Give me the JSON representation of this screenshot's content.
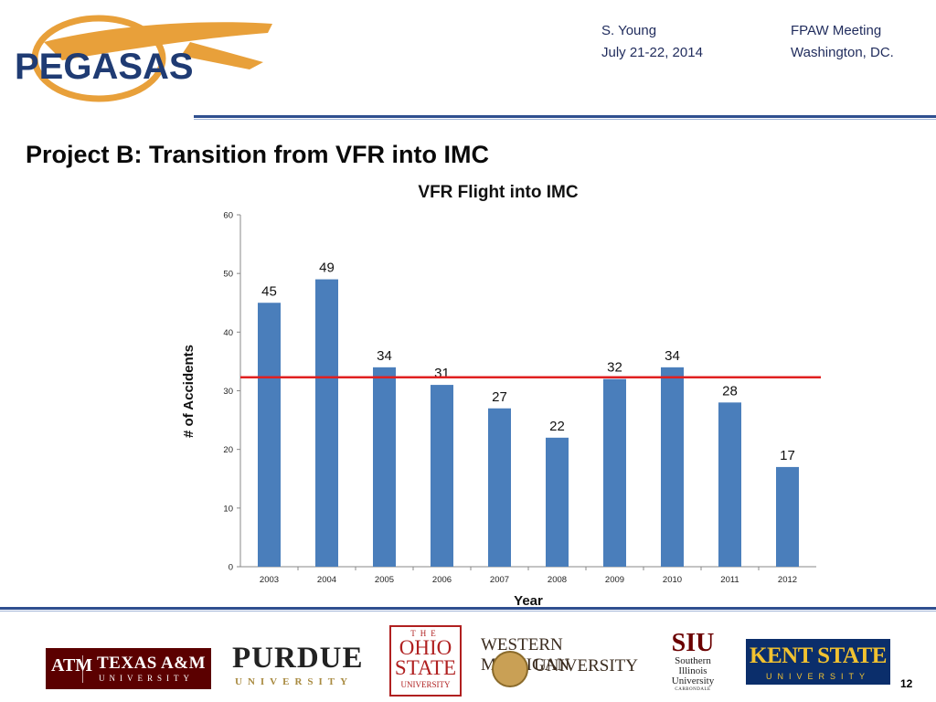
{
  "logo": {
    "text": "PEGASAS"
  },
  "header": {
    "author": "S. Young",
    "date": "July 21-22, 2014",
    "event": "FPAW Meeting",
    "location": "Washington, DC."
  },
  "slide": {
    "title": "Project B:  Transition from VFR into IMC",
    "page_number": "12"
  },
  "chart_data": {
    "type": "bar",
    "title": "VFR Flight into IMC",
    "xlabel": "Year",
    "ylabel": "# of Accidents",
    "categories": [
      "2003",
      "2004",
      "2005",
      "2006",
      "2007",
      "2008",
      "2009",
      "2010",
      "2011",
      "2012"
    ],
    "values": [
      45,
      49,
      34,
      31,
      27,
      22,
      32,
      34,
      28,
      17
    ],
    "data_labels": [
      "45",
      "49",
      "34",
      "31",
      "27",
      "22",
      "32",
      "34",
      "28",
      "17"
    ],
    "ylim": [
      0,
      60
    ],
    "yticks": [
      0,
      10,
      20,
      30,
      40,
      50,
      60
    ],
    "ytick_labels": [
      "0",
      "10",
      "20",
      "30",
      "40",
      "50",
      "60"
    ],
    "reference_line": 32.3,
    "grid": false,
    "bar_color": "#4a7ebb",
    "reference_line_color": "#e02020"
  },
  "universities": {
    "tamu": {
      "name": "TEXAS A&M",
      "sub": "UNIVERSITY",
      "mark": "ATM"
    },
    "purdue": {
      "name": "PURDUE",
      "sub": "UNIVERSITY"
    },
    "osu": {
      "the": "THE",
      "line1": "OHIO",
      "line2": "STATE",
      "line3": "UNIVERSITY"
    },
    "wmu": {
      "line1": "WESTERN MICHIGAN",
      "line2": "UNIVERSITY"
    },
    "siu": {
      "name": "SIU",
      "line1": "Southern",
      "line2": "Illinois",
      "line3": "University",
      "line4": "CARBONDALE"
    },
    "kent": {
      "name": "KENT STATE",
      "sub": "UNIVERSITY"
    }
  },
  "colors": {
    "navy": "#1f3b73",
    "rule": "#2f4f8f",
    "logo_gold": "#e8a03a"
  }
}
